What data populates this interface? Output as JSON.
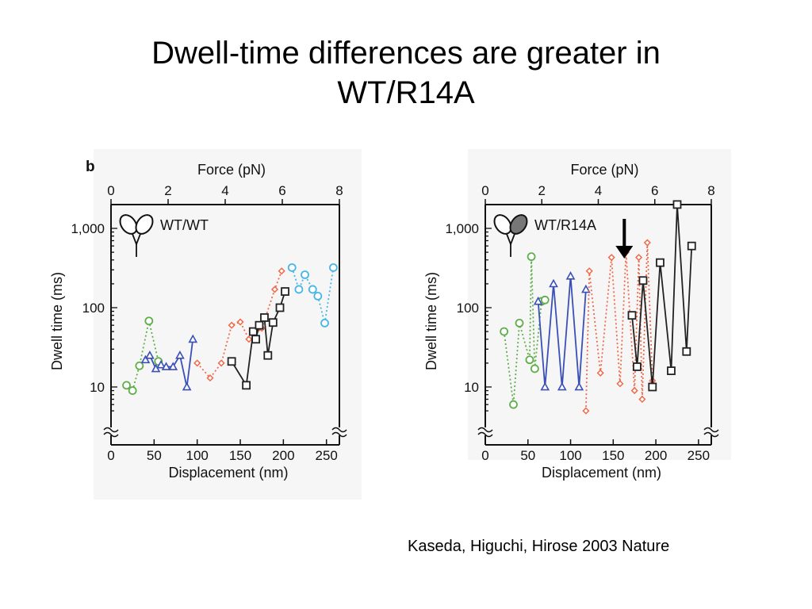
{
  "slide": {
    "title_lines": [
      "Dwell-time differences are greater in",
      "WT/R14A"
    ],
    "citation": "Kaseda, Higuchi, Hirose 2003 Nature"
  },
  "chart_data": [
    {
      "type": "scatter",
      "panel_label": "b",
      "legend_label": "WT/WT",
      "legend_icon": "two-heads-open-icon",
      "top_axis_label": "Force (pN)",
      "top_ticks": [
        "0",
        "2",
        "4",
        "6",
        "8"
      ],
      "top_range": [
        0,
        8
      ],
      "xlabel": "Displacement (nm)",
      "ylabel": "Dwell time (ms)",
      "x_ticks": [
        "0",
        "50",
        "100",
        "150",
        "200",
        "250"
      ],
      "y_ticks": [
        "10",
        "100",
        "1,000"
      ],
      "xlim": [
        0,
        265
      ],
      "ylim_log10": [
        0.6,
        3.3
      ],
      "y_scale": "log",
      "grid": false,
      "colors": {
        "green": "#5fae4a",
        "blue": "#3b4fb8",
        "red": "#ef6a4a",
        "black": "#222222",
        "cyan": "#46b6e8"
      },
      "segments": [
        {
          "color": "green",
          "marker": "circle",
          "points": [
            [
              18,
              10.5
            ],
            [
              25,
              9
            ],
            [
              33,
              18.5
            ],
            [
              44,
              68
            ],
            [
              55,
              21
            ]
          ]
        },
        {
          "color": "blue",
          "marker": "triangle",
          "points": [
            [
              40,
              22
            ],
            [
              45,
              25
            ],
            [
              52,
              17
            ],
            [
              58,
              19
            ],
            [
              64,
              18
            ],
            [
              72,
              18
            ],
            [
              80,
              25
            ],
            [
              88,
              10
            ],
            [
              95,
              40
            ]
          ]
        },
        {
          "color": "red",
          "marker": "diamond",
          "points": [
            [
              100,
              20
            ],
            [
              115,
              13
            ],
            [
              128,
              20
            ],
            [
              140,
              60
            ],
            [
              150,
              66
            ],
            [
              160,
              40
            ],
            [
              175,
              55
            ],
            [
              190,
              170
            ],
            [
              198,
              290
            ]
          ]
        },
        {
          "color": "black",
          "marker": "square",
          "points": [
            [
              140,
              21
            ],
            [
              157,
              10.5
            ],
            [
              165,
              50
            ],
            [
              168,
              40
            ],
            [
              172,
              60
            ],
            [
              178,
              75
            ],
            [
              182,
              25
            ],
            [
              188,
              65
            ],
            [
              196,
              100
            ],
            [
              202,
              160
            ]
          ]
        },
        {
          "color": "cyan",
          "marker": "circle",
          "points": [
            [
              210,
              320
            ],
            [
              218,
              170
            ],
            [
              225,
              260
            ],
            [
              234,
              170
            ],
            [
              240,
              140
            ],
            [
              248,
              64
            ],
            [
              258,
              320
            ]
          ]
        }
      ]
    },
    {
      "type": "scatter",
      "legend_label": "WT/R14A",
      "legend_icon": "two-heads-filled-icon",
      "arrow_annotation": "down-arrow-icon",
      "top_axis_label": "Force (pN)",
      "top_ticks": [
        "0",
        "2",
        "4",
        "6",
        "8"
      ],
      "top_range": [
        0,
        8
      ],
      "xlabel": "Displacement (nm)",
      "ylabel": "Dwell time (ms)",
      "x_ticks": [
        "0",
        "50",
        "100",
        "150",
        "200",
        "250"
      ],
      "y_ticks": [
        "10",
        "100",
        "1,000"
      ],
      "xlim": [
        0,
        265
      ],
      "ylim_log10": [
        0.6,
        3.3
      ],
      "y_scale": "log",
      "grid": false,
      "colors": {
        "green": "#5fae4a",
        "blue": "#3b4fb8",
        "red": "#ef6a4a",
        "black": "#222222"
      },
      "segments": [
        {
          "color": "green",
          "marker": "circle",
          "points": [
            [
              22,
              50
            ],
            [
              33,
              6
            ],
            [
              40,
              64
            ],
            [
              52,
              22
            ],
            [
              54,
              440
            ],
            [
              58,
              17
            ],
            [
              66,
              120
            ],
            [
              70,
              125
            ]
          ]
        },
        {
          "color": "blue",
          "marker": "triangle",
          "points": [
            [
              62,
              120
            ],
            [
              70,
              10
            ],
            [
              80,
              200
            ],
            [
              90,
              10
            ],
            [
              100,
              250
            ],
            [
              110,
              10
            ],
            [
              118,
              170
            ]
          ]
        },
        {
          "color": "red",
          "marker": "diamond",
          "points": [
            [
              118,
              5
            ],
            [
              122,
              290
            ],
            [
              135,
              15
            ],
            [
              148,
              430
            ],
            [
              158,
              11
            ],
            [
              165,
              500
            ],
            [
              175,
              9
            ],
            [
              180,
              430
            ],
            [
              184,
              7
            ],
            [
              190,
              660
            ],
            [
              196,
              12
            ]
          ]
        },
        {
          "color": "black",
          "marker": "square",
          "points": [
            [
              172,
              80
            ],
            [
              178,
              18
            ],
            [
              185,
              220
            ],
            [
              196,
              10
            ],
            [
              205,
              370
            ],
            [
              218,
              16
            ],
            [
              225,
              2000
            ],
            [
              236,
              28
            ],
            [
              242,
              600
            ]
          ]
        }
      ]
    }
  ]
}
